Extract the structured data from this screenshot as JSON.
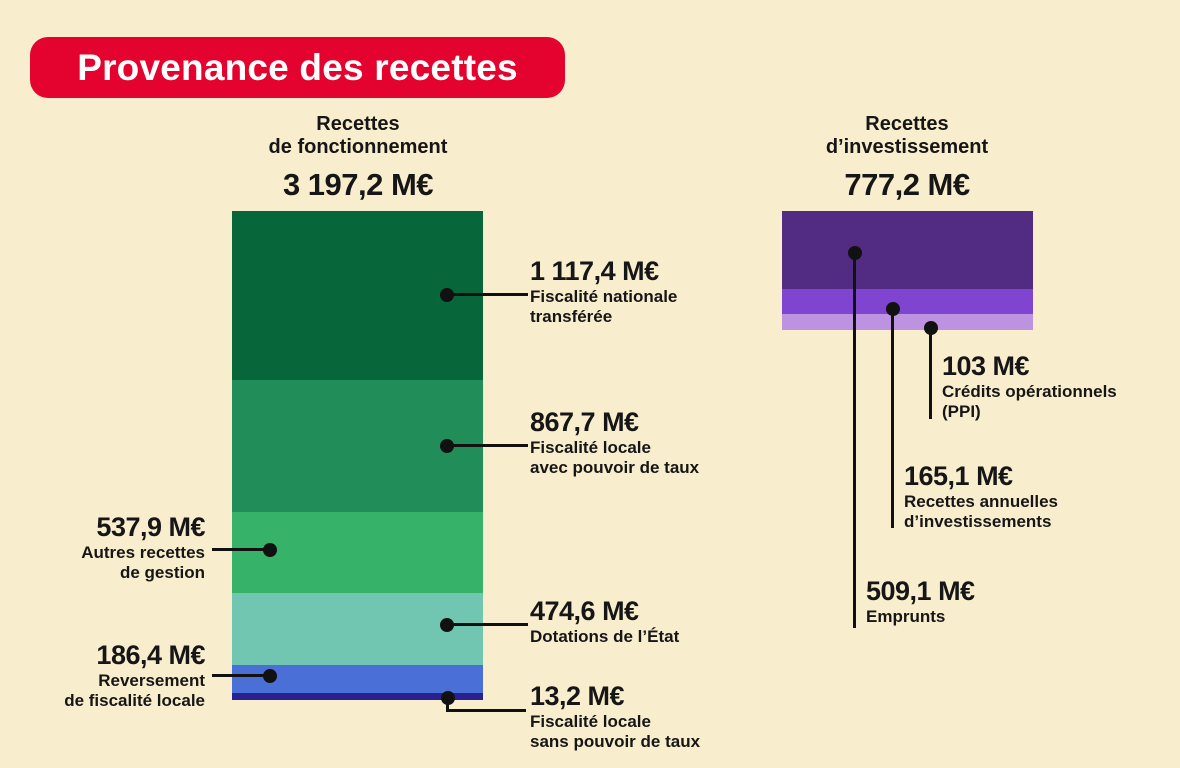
{
  "page": {
    "title": "Provenance des recettes"
  },
  "colors": {
    "background": "#f8edcd",
    "title_bg": "#e4032e",
    "title_text": "#ffffff",
    "text": "#161616",
    "connector": "#111111"
  },
  "chart_data": [
    {
      "type": "bar",
      "stacked": true,
      "title_lines": [
        "Recettes",
        "de fonctionnement"
      ],
      "total_value": 3197.2,
      "total_label": "3 197,2 M€",
      "unit": "M€",
      "segments": [
        {
          "value": 1117.4,
          "value_label": "1 117,4 M€",
          "label_lines": [
            "Fiscalité nationale",
            "transférée"
          ],
          "color": "#07673b"
        },
        {
          "value": 867.7,
          "value_label": "867,7 M€",
          "label_lines": [
            "Fiscalité locale",
            "avec pouvoir de taux"
          ],
          "color": "#218d58"
        },
        {
          "value": 537.9,
          "value_label": "537,9 M€",
          "label_lines": [
            "Autres recettes",
            "de gestion"
          ],
          "color": "#36b269"
        },
        {
          "value": 474.6,
          "value_label": "474,6 M€",
          "label_lines": [
            "Dotations de l’État"
          ],
          "color": "#71c6b1"
        },
        {
          "value": 186.4,
          "value_label": "186,4 M€",
          "label_lines": [
            "Reversement",
            "de fiscalité locale"
          ],
          "color": "#4a70d8"
        },
        {
          "value": 13.2,
          "value_label": "13,2 M€",
          "label_lines": [
            "Fiscalité locale",
            "sans pouvoir de taux"
          ],
          "color": "#2a2191"
        }
      ]
    },
    {
      "type": "bar",
      "stacked": true,
      "title_lines": [
        "Recettes",
        "d’investissement"
      ],
      "total_value": 777.2,
      "total_label": "777,2 M€",
      "unit": "M€",
      "segments": [
        {
          "value": 509.1,
          "value_label": "509,1 M€",
          "label_lines": [
            "Emprunts"
          ],
          "color": "#522c82"
        },
        {
          "value": 165.1,
          "value_label": "165,1 M€",
          "label_lines": [
            "Recettes annuelles",
            "d’investissements"
          ],
          "color": "#7f44d0"
        },
        {
          "value": 103,
          "value_label": "103 M€",
          "label_lines": [
            "Crédits opérationnels",
            "(PPI)"
          ],
          "color": "#bd92e0"
        }
      ]
    }
  ]
}
